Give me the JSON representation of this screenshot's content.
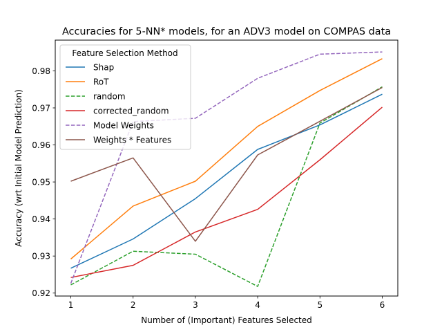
{
  "chart_data": {
    "type": "line",
    "title": "Accuracies for 5-NN* models, for an ADV3 model on COMPAS data",
    "xlabel": "Number of (Important) Features Selected",
    "ylabel": "Accuracy (wrt Initial Model Prediction)",
    "x": [
      1,
      2,
      3,
      4,
      5,
      6
    ],
    "xticks": [
      "1",
      "2",
      "3",
      "4",
      "5",
      "6"
    ],
    "yticks": [
      "0.92",
      "0.93",
      "0.94",
      "0.95",
      "0.96",
      "0.97",
      "0.98"
    ],
    "xlim": [
      0.75,
      6.25
    ],
    "ylim": [
      0.9192,
      0.9883
    ],
    "grid": false,
    "legend": {
      "title": "Feature Selection Method",
      "placement": "top-left"
    },
    "series": [
      {
        "name": "Shap",
        "color": "#1f77b4",
        "dashed": false,
        "values": [
          0.9267,
          0.9346,
          0.9455,
          0.9588,
          0.9654,
          0.9737
        ]
      },
      {
        "name": "RoT",
        "color": "#ff7f0e",
        "dashed": false,
        "values": [
          0.9292,
          0.9435,
          0.9502,
          0.965,
          0.9747,
          0.9833
        ]
      },
      {
        "name": "random",
        "color": "#2ca02c",
        "dashed": true,
        "values": [
          0.9222,
          0.9313,
          0.9305,
          0.9218,
          0.9659,
          0.9757
        ]
      },
      {
        "name": "corrected_random",
        "color": "#d62728",
        "dashed": false,
        "values": [
          0.9242,
          0.9275,
          0.9365,
          0.9426,
          0.956,
          0.9702
        ]
      },
      {
        "name": "Model Weights",
        "color": "#9467bd",
        "dashed": true,
        "values": [
          0.9226,
          0.9663,
          0.9672,
          0.978,
          0.9845,
          0.9851
        ]
      },
      {
        "name": "Weights * Features",
        "color": "#8c564b",
        "dashed": false,
        "values": [
          0.9502,
          0.9565,
          0.934,
          0.9573,
          0.9664,
          0.9755
        ]
      }
    ]
  }
}
